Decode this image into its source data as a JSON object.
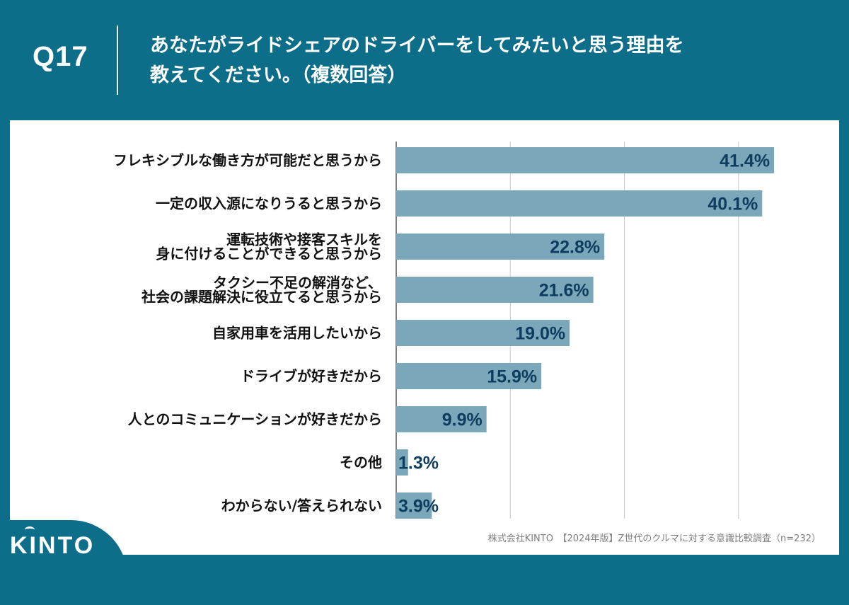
{
  "header": {
    "question_number": "Q17",
    "title_line1": "あなたがライドシェアのドライバーをしてみたいと思う理由を",
    "title_line2": "教えてください。（複数回答）"
  },
  "footer": {
    "source": "株式会社KINTO　【2024年版】Z世代のクルマに対する意識比較調査（n=232）"
  },
  "logo": {
    "text": "KINTO"
  },
  "colors": {
    "bar": "#7aa8ba",
    "value_text": "#0d3c5e",
    "header_bg": "#0d6e8a",
    "gridline": "#c8c8c8"
  },
  "chart_data": {
    "type": "bar",
    "orientation": "horizontal",
    "xlim": [
      0,
      50
    ],
    "unit": "%",
    "categories": [
      [
        "フレキシブルな働き方が可能だと思うから"
      ],
      [
        "一定の収入源になりうると思うから"
      ],
      [
        "運転技術や接客スキルを",
        "身に付けることができると思うから"
      ],
      [
        "タクシー不足の解消など、",
        "社会の課題解決に役立てると思うから"
      ],
      [
        "自家用車を活用したいから"
      ],
      [
        "ドライブが好きだから"
      ],
      [
        "人とのコミュニケーションが好きだから"
      ],
      [
        "その他"
      ],
      [
        "わからない/答えられない"
      ]
    ],
    "values": [
      41.4,
      40.1,
      22.8,
      21.6,
      19.0,
      15.9,
      9.9,
      1.3,
      3.9
    ],
    "labels": [
      "41.4%",
      "40.1%",
      "22.8%",
      "21.6%",
      "19.0%",
      "15.9%",
      "9.9%",
      "1.3%",
      "3.9%"
    ]
  }
}
